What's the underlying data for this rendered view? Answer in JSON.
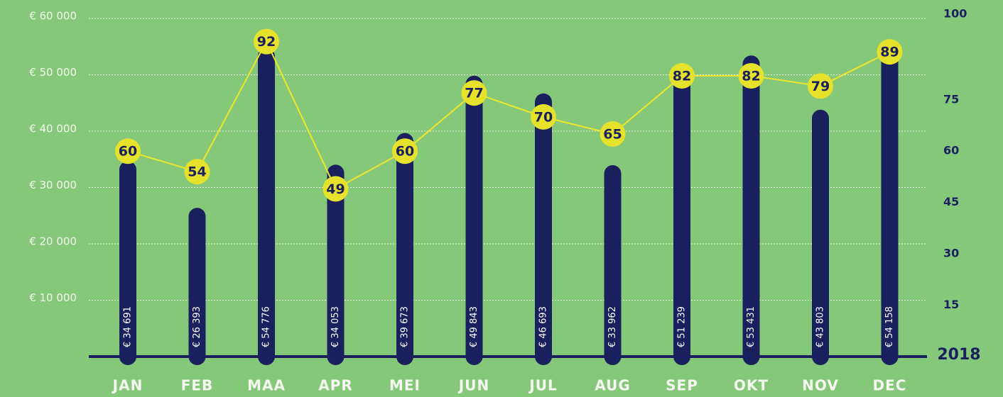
{
  "chart_data": {
    "type": "bar",
    "x_label": "2018",
    "categories": [
      "JAN",
      "FEB",
      "MAA",
      "APR",
      "MEI",
      "JUN",
      "JUL",
      "AUG",
      "SEP",
      "OKT",
      "NOV",
      "DEC"
    ],
    "ylim": [
      0,
      60000
    ],
    "yticks": [
      {
        "value": 10000,
        "label": "€ 10 000"
      },
      {
        "value": 20000,
        "label": "€ 20 000"
      },
      {
        "value": 30000,
        "label": "€ 30 000"
      },
      {
        "value": 40000,
        "label": "€ 40 000"
      },
      {
        "value": 50000,
        "label": "€ 50 000"
      },
      {
        "value": 60000,
        "label": "€ 60 000"
      }
    ],
    "y2lim": [
      0,
      100
    ],
    "y2ticks": [
      15,
      30,
      45,
      60,
      75,
      100
    ],
    "grid": true,
    "series": [
      {
        "type": "bar",
        "color": "#1a1f5e",
        "values": [
          34691,
          26393,
          54776,
          34053,
          39673,
          49843,
          46693,
          33962,
          51239,
          53431,
          43803,
          54158
        ],
        "value_labels": [
          "€ 34 691",
          "€ 26 393",
          "€ 54 776",
          "€ 34 053",
          "€ 39 673",
          "€ 49 843",
          "€ 46 693",
          "€ 33 962",
          "€ 51 239",
          "€ 53 431",
          "€ 43 803",
          "€ 54 158"
        ]
      },
      {
        "type": "line",
        "axis": "y2",
        "color": "#efe62a",
        "values": [
          60,
          54,
          92,
          49,
          60,
          77,
          70,
          65,
          82,
          82,
          79,
          89
        ]
      }
    ]
  }
}
